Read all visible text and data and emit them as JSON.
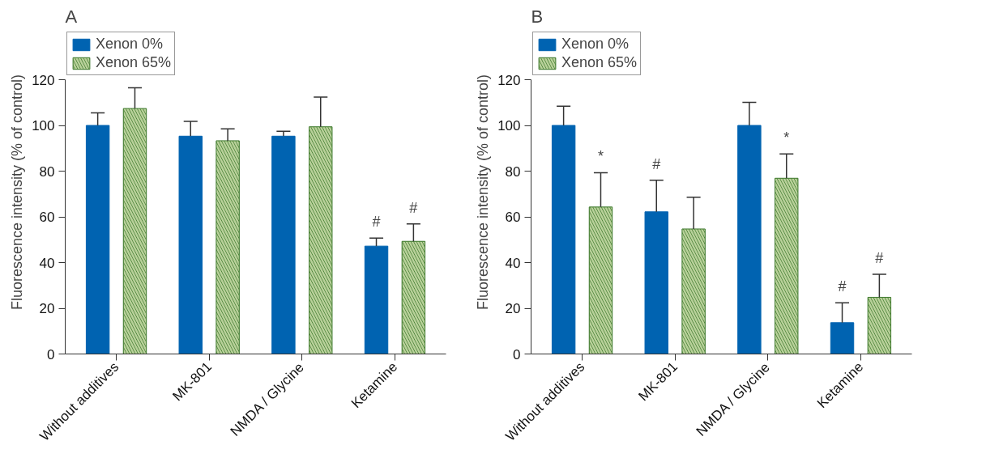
{
  "chart_data": [
    {
      "type": "bar",
      "title": "A",
      "ylabel": "Fluorescence intensity (% of control)",
      "categories": [
        "Without additives",
        "MK-801",
        "NMDA / Glycine",
        "Ketamine"
      ],
      "series": [
        {
          "name": "Xenon 0%",
          "color": "#0063b1",
          "values": [
            100,
            95.3,
            95.3,
            47.2
          ],
          "errors": [
            [
              100,
              105.5
            ],
            [
              95.3,
              101.8
            ],
            [
              95.3,
              97.4
            ],
            [
              47.2,
              50.7
            ]
          ],
          "value_labels": [
            null,
            null,
            null,
            "#"
          ]
        },
        {
          "name": "Xenon 65%",
          "color": "#3f7a2e",
          "values": [
            107.4,
            93.3,
            99.4,
            49.3
          ],
          "errors": [
            [
              107.4,
              116.5
            ],
            [
              93.3,
              98.5
            ],
            [
              99.4,
              112.4
            ],
            [
              49.3,
              56.9
            ]
          ],
          "value_labels": [
            null,
            null,
            null,
            "#"
          ]
        }
      ],
      "ylim": [
        0,
        120
      ],
      "yticks": [
        0,
        20,
        40,
        60,
        80,
        100,
        120
      ],
      "grid": false,
      "legend": "top left"
    },
    {
      "type": "bar",
      "title": "B",
      "ylabel": "Fluorescence intensity (% of control)",
      "categories": [
        "Without additives",
        "MK-801",
        "NMDA / Glycine",
        "Ketamine"
      ],
      "series": [
        {
          "name": "Xenon 0%",
          "color": "#0063b1",
          "values": [
            100,
            62.2,
            100,
            13.7
          ],
          "errors": [
            [
              100,
              108.4
            ],
            [
              62.2,
              76
            ],
            [
              100,
              110.1
            ],
            [
              13.7,
              22.4
            ]
          ],
          "value_labels": [
            null,
            "#",
            null,
            "#"
          ]
        },
        {
          "name": "Xenon 65%",
          "color": "#3f7a2e",
          "values": [
            64.3,
            54.7,
            76.9,
            24.8
          ],
          "errors": [
            [
              64.3,
              79.3
            ],
            [
              54.7,
              68.6
            ],
            [
              76.9,
              87.5
            ],
            [
              24.8,
              34.9
            ]
          ],
          "value_labels": [
            "*",
            null,
            "*",
            "#"
          ]
        }
      ],
      "ylim": [
        0,
        120
      ],
      "yticks": [
        0,
        20,
        40,
        60,
        80,
        100,
        120
      ],
      "grid": false,
      "legend": "top left"
    }
  ]
}
